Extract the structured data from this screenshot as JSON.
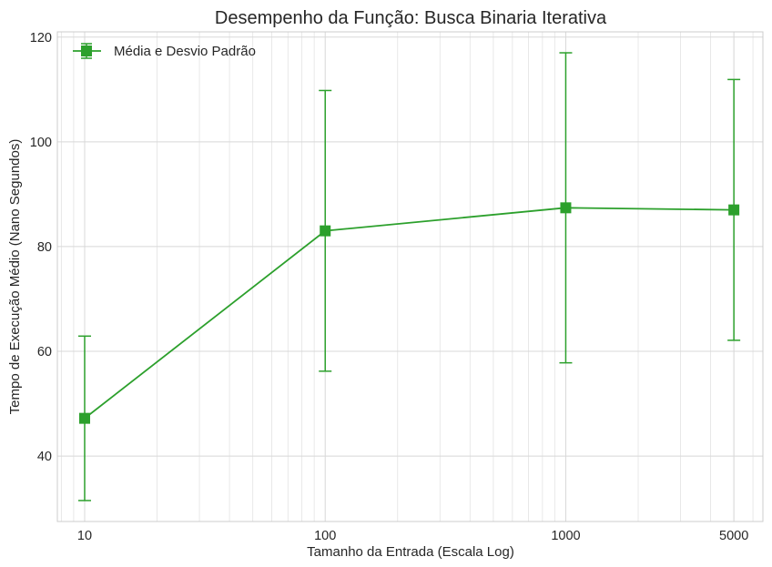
{
  "chart_data": {
    "type": "line",
    "title": "Desempenho da Função: Busca Binaria Iterativa",
    "xlabel": "Tamanho da Entrada (Escala Log)",
    "ylabel": "Tempo de Execução Médio (Nano Segundos)",
    "x_scale": "log",
    "xlim": [
      7.7,
      6600
    ],
    "ylim": [
      27.5,
      121
    ],
    "x_ticks": [
      10,
      100,
      1000,
      5000
    ],
    "x_tick_labels": [
      "10",
      "100",
      "1000",
      "5000"
    ],
    "y_ticks": [
      40,
      60,
      80,
      100,
      120
    ],
    "y_tick_labels": [
      "40",
      "60",
      "80",
      "100",
      "120"
    ],
    "grid": true,
    "legend_position": "top-left",
    "series": [
      {
        "name": "Média e Desvio Padrão",
        "color": "#2ca02c",
        "marker": "square",
        "x": [
          10,
          100,
          1000,
          5000
        ],
        "y": [
          47.2,
          83.0,
          87.4,
          87.0
        ],
        "error": [
          15.7,
          26.8,
          29.6,
          24.9
        ]
      }
    ]
  }
}
